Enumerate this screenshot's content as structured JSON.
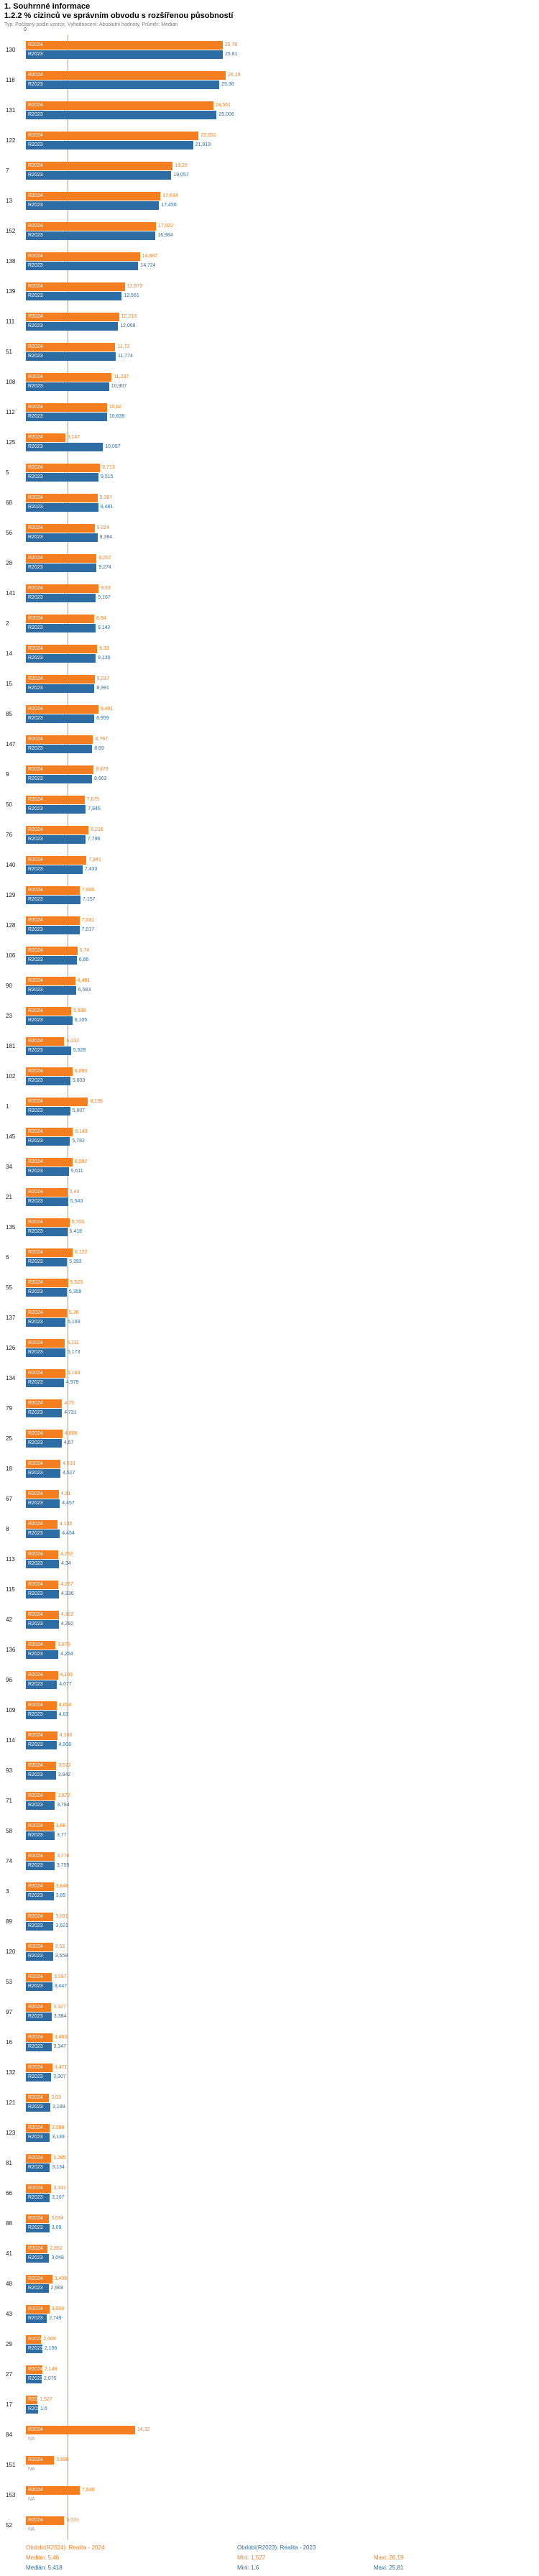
{
  "header": {
    "title": "1. Souhrnné informace",
    "meta": "Typ: Počítaný podle vzorce, Vyhodnocení: Absolutní hodnoty, Průměr: Medián"
  },
  "na_label": "NA",
  "chart_data": {
    "type": "bar",
    "orientation": "horizontal",
    "title": "1.2.2 % cizinců ve správním obvodu s rozšířenou působností",
    "xlim": [
      0,
      26.19
    ],
    "axis_zero_label": "0",
    "grid": false,
    "legend_position": "bottom",
    "series_names": [
      "R2024",
      "R2023"
    ],
    "colors": {
      "R2024": "#f57e20",
      "R2023": "#2d6da3",
      "na": "#9a9a9a",
      "median_line": "#a9a29a"
    },
    "median_line_value": 5.46,
    "rows": [
      {
        "id": "130",
        "R2024": "25,78",
        "R2023": "25,81"
      },
      {
        "id": "118",
        "R2024": "26,19",
        "R2023": "25,36"
      },
      {
        "id": "131",
        "R2024": "24,551",
        "R2023": "25,006"
      },
      {
        "id": "122",
        "R2024": "22,651",
        "R2023": "21,919"
      },
      {
        "id": "7",
        "R2024": "19,25",
        "R2023": "19,057"
      },
      {
        "id": "13",
        "R2024": "17,634",
        "R2023": "17,456"
      },
      {
        "id": "152",
        "R2024": "17,022",
        "R2023": "16,984"
      },
      {
        "id": "138",
        "R2024": "14,937",
        "R2023": "14,724"
      },
      {
        "id": "139",
        "R2024": "12,973",
        "R2023": "12,561"
      },
      {
        "id": "111",
        "R2024": "12,213",
        "R2023": "12,068"
      },
      {
        "id": "51",
        "R2024": "11,72",
        "R2023": "11,774"
      },
      {
        "id": "108",
        "R2024": "11,237",
        "R2023": "10,907"
      },
      {
        "id": "112",
        "R2024": "10,62",
        "R2023": "10,639"
      },
      {
        "id": "125",
        "R2024": "5,147",
        "R2023": "10,097"
      },
      {
        "id": "5",
        "R2024": "9,713",
        "R2023": "9,515"
      },
      {
        "id": "68",
        "R2024": "9,387",
        "R2023": "9,481"
      },
      {
        "id": "56",
        "R2024": "9,024",
        "R2023": "9,384"
      },
      {
        "id": "28",
        "R2024": "9,257",
        "R2023": "9,274"
      },
      {
        "id": "141",
        "R2024": "9,53",
        "R2023": "9,167"
      },
      {
        "id": "2",
        "R2024": "8,94",
        "R2023": "9,142"
      },
      {
        "id": "14",
        "R2024": "9,33",
        "R2023": "9,135"
      },
      {
        "id": "15",
        "R2024": "9,017",
        "R2023": "8,991"
      },
      {
        "id": "85",
        "R2024": "9,481",
        "R2023": "8,959"
      },
      {
        "id": "147",
        "R2024": "8,797",
        "R2023": "8,69"
      },
      {
        "id": "9",
        "R2024": "8,879",
        "R2023": "8,663"
      },
      {
        "id": "50",
        "R2024": "7,675",
        "R2023": "7,845"
      },
      {
        "id": "76",
        "R2024": "8,216",
        "R2023": "7,796"
      },
      {
        "id": "140",
        "R2024": "7,941",
        "R2023": "7,433"
      },
      {
        "id": "129",
        "R2024": "7,036",
        "R2023": "7,157"
      },
      {
        "id": "128",
        "R2024": "7,031",
        "R2023": "7,017"
      },
      {
        "id": "106",
        "R2024": "6,74",
        "R2023": "6,66"
      },
      {
        "id": "90",
        "R2024": "6,481",
        "R2023": "6,583"
      },
      {
        "id": "23",
        "R2024": "5,939",
        "R2023": "6,105"
      },
      {
        "id": "181",
        "R2024": "5,032",
        "R2023": "5,929"
      },
      {
        "id": "102",
        "R2024": "6,093",
        "R2023": "5,833"
      },
      {
        "id": "1",
        "R2024": "8,136",
        "R2023": "5,807"
      },
      {
        "id": "145",
        "R2024": "6,143",
        "R2023": "5,782"
      },
      {
        "id": "34",
        "R2024": "6,092",
        "R2023": "5,611"
      },
      {
        "id": "21",
        "R2024": "5,44",
        "R2023": "5,543"
      },
      {
        "id": "135",
        "R2024": "5,703",
        "R2023": "5,418"
      },
      {
        "id": "6",
        "R2024": "6,122",
        "R2023": "5,393"
      },
      {
        "id": "55",
        "R2024": "5,523",
        "R2023": "5,359"
      },
      {
        "id": "137",
        "R2024": "5,36",
        "R2023": "5,193"
      },
      {
        "id": "126",
        "R2024": "5,111",
        "R2023": "5,173"
      },
      {
        "id": "134",
        "R2024": "5,163",
        "R2023": "4,979"
      },
      {
        "id": "79",
        "R2024": "4,75",
        "R2023": "4,731"
      },
      {
        "id": "25",
        "R2024": "4,806",
        "R2023": "4,67"
      },
      {
        "id": "18",
        "R2024": "4,533",
        "R2023": "4,527"
      },
      {
        "id": "67",
        "R2024": "4,31",
        "R2023": "4,457"
      },
      {
        "id": "8",
        "R2024": "4,135",
        "R2023": "4,454"
      },
      {
        "id": "113",
        "R2024": "4,252",
        "R2023": "4,34"
      },
      {
        "id": "115",
        "R2024": "4,267",
        "R2023": "4,336"
      },
      {
        "id": "42",
        "R2024": "4,303",
        "R2023": "4,292"
      },
      {
        "id": "136",
        "R2024": "3,876",
        "R2023": "4,264"
      },
      {
        "id": "96",
        "R2024": "4,193",
        "R2023": "4,077"
      },
      {
        "id": "109",
        "R2024": "4,034",
        "R2023": "4,03"
      },
      {
        "id": "114",
        "R2024": "4,108",
        "R2023": "4,008"
      },
      {
        "id": "93",
        "R2024": "3,972",
        "R2023": "3,942"
      },
      {
        "id": "71",
        "R2024": "3,872",
        "R2023": "3,784"
      },
      {
        "id": "58",
        "R2024": "3,66",
        "R2023": "3,77"
      },
      {
        "id": "74",
        "R2024": "3,776",
        "R2023": "3,755"
      },
      {
        "id": "3",
        "R2024": "3,648",
        "R2023": "3,65"
      },
      {
        "id": "89",
        "R2024": "3,591",
        "R2023": "3,621"
      },
      {
        "id": "120",
        "R2024": "3,53",
        "R2023": "3,559"
      },
      {
        "id": "53",
        "R2024": "3,397",
        "R2023": "3,447"
      },
      {
        "id": "97",
        "R2024": "3,327",
        "R2023": "3,384"
      },
      {
        "id": "16",
        "R2024": "3,463",
        "R2023": "3,347"
      },
      {
        "id": "132",
        "R2024": "3,471",
        "R2023": "3,307"
      },
      {
        "id": "121",
        "R2024": "3,03",
        "R2023": "3,199"
      },
      {
        "id": "123",
        "R2024": "3,098",
        "R2023": "3,139"
      },
      {
        "id": "81",
        "R2024": "3,285",
        "R2023": "3,134"
      },
      {
        "id": "66",
        "R2024": "3,331",
        "R2023": "3,107"
      },
      {
        "id": "88",
        "R2024": "3,034",
        "R2023": "3,09"
      },
      {
        "id": "41",
        "R2024": "2,852",
        "R2023": "3,048"
      },
      {
        "id": "48",
        "R2024": "3,439",
        "R2023": "2,968"
      },
      {
        "id": "43",
        "R2024": "3,059",
        "R2023": "2,749"
      },
      {
        "id": "29",
        "R2024": "2,009",
        "R2023": "2,156"
      },
      {
        "id": "27",
        "R2024": "2,148",
        "R2023": "2,075"
      },
      {
        "id": "17",
        "R2024": "1,527",
        "R2023": "1,6"
      },
      {
        "id": "84",
        "R2024": "14,32",
        "R2023": null
      },
      {
        "id": "151",
        "R2024": "3,696",
        "R2023": null
      },
      {
        "id": "153",
        "R2024": "7,048",
        "R2023": null
      },
      {
        "id": "52",
        "R2024": "5,031",
        "R2023": null
      }
    ]
  },
  "legend": {
    "series": [
      {
        "label": "Období(R2024): Realita - 2024",
        "median": "Medián: 5,46",
        "min": "Mini: 1,527",
        "max": "Maxi: 26,19"
      },
      {
        "label": "Období(R2023): Realita - 2023",
        "median": "Medián: 5,418",
        "min": "Mini: 1,6",
        "max": "Maxi: 25,81"
      }
    ]
  }
}
